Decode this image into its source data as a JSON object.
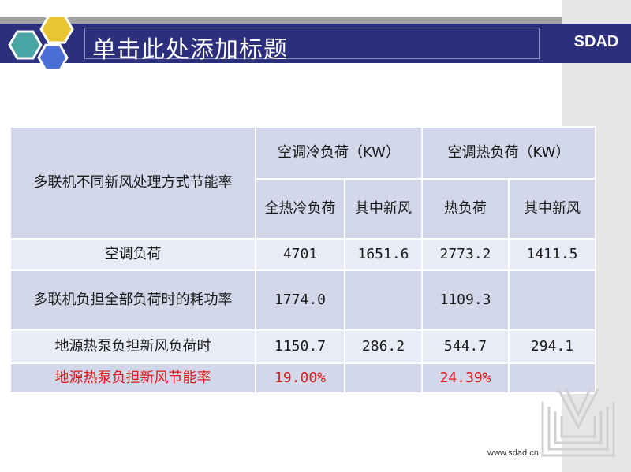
{
  "title": "单击此处添加标题",
  "brand": "SDAD",
  "footer_url": "www.sdad.cn",
  "colors": {
    "title_band": "#2b2f7c",
    "hex_yellow": "#e8c531",
    "hex_teal": "#4aa6a4",
    "hex_blue": "#4a6fd4",
    "table_row_a": "#d2d8ea",
    "table_row_b": "#e9ecf6",
    "highlight_text": "#e01818"
  },
  "table": {
    "header": {
      "row_label": "多联机不同新风处理方式节能率",
      "cooling_group": "空调冷负荷（KW）",
      "heating_group": "空调热负荷（KW）",
      "cooling_total": "全热冷负荷",
      "cooling_fresh": "其中新风",
      "heating_total": "热负荷",
      "heating_fresh": "其中新风"
    },
    "rows": [
      {
        "label": "空调负荷",
        "c1": "4701",
        "c2": "1651.6",
        "c3": "2773.2",
        "c4": "1411.5"
      },
      {
        "label": "多联机负担全部负荷时的耗功率",
        "c1": "1774.0",
        "c2": "",
        "c3": "1109.3",
        "c4": ""
      },
      {
        "label": "地源热泵负担新风负荷时",
        "c1": "1150.7",
        "c2": "286.2",
        "c3": "544.7",
        "c4": "294.1"
      },
      {
        "label": "地源热泵负担新风节能率",
        "c1": "19.00%",
        "c2": "",
        "c3": "24.39%",
        "c4": ""
      }
    ]
  }
}
